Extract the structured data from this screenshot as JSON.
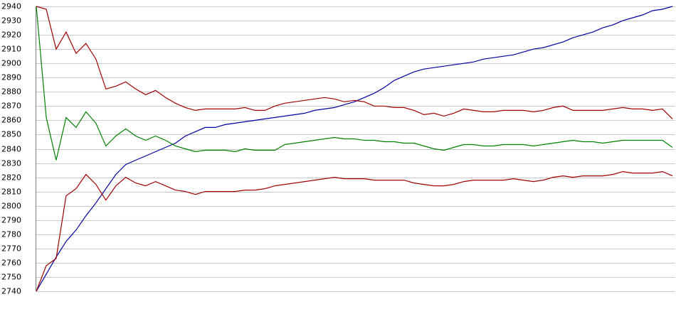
{
  "chart_data": {
    "type": "line",
    "categories": [
      null,
      null,
      null,
      null,
      null,
      null,
      null,
      null,
      null,
      null,
      null,
      null,
      null,
      null,
      null,
      null,
      null,
      null,
      null,
      null,
      null,
      null,
      null,
      null,
      null,
      null,
      null,
      null,
      null,
      null,
      null,
      null,
      null,
      null,
      null,
      null,
      null,
      null,
      null,
      null,
      null,
      null,
      null,
      null,
      null,
      null,
      null,
      null,
      null,
      null,
      null,
      null,
      null,
      null,
      null,
      null,
      null,
      null,
      null,
      null,
      null,
      null,
      null,
      null,
      null
    ],
    "ylim": [
      2740,
      2940
    ],
    "yticks": [
      2740,
      2750,
      2760,
      2770,
      2780,
      2790,
      2800,
      2810,
      2820,
      2830,
      2840,
      2850,
      2860,
      2870,
      2880,
      2890,
      2900,
      2910,
      2920,
      2930,
      2940
    ],
    "grid": true,
    "series": [
      {
        "color": "#0000a0",
        "values": [
          2740,
          2752,
          2764,
          2775,
          2783,
          2793,
          2802,
          2812,
          2822,
          2829,
          2832,
          2835,
          2838,
          2841,
          2844,
          2849,
          2852,
          2855,
          2855,
          2857,
          2858,
          2859,
          2860,
          2861,
          2862,
          2863,
          2864,
          2865,
          2867,
          2868,
          2869,
          2871,
          2873,
          2876,
          2879,
          2883,
          2888,
          2891,
          2894,
          2896,
          2897,
          2898,
          2899,
          2900,
          2901,
          2903,
          2904,
          2905,
          2906,
          2908,
          2910,
          2911,
          2913,
          2915,
          2918,
          2920,
          2922,
          2925,
          2927,
          2930,
          2932,
          2934,
          2937,
          2938,
          2940
        ]
      },
      {
        "color": "#008000",
        "values": [
          2940,
          2862,
          2832,
          2862,
          2855,
          2866,
          2858,
          2842,
          2849,
          2854,
          2849,
          2846,
          2849,
          2846,
          2842,
          2840,
          2838,
          2839,
          2839,
          2839,
          2838,
          2840,
          2839,
          2839,
          2839,
          2843,
          2844,
          2845,
          2846,
          2847,
          2848,
          2847,
          2847,
          2846,
          2846,
          2845,
          2845,
          2844,
          2844,
          2842,
          2840,
          2839,
          2841,
          2843,
          2843,
          2842,
          2842,
          2843,
          2843,
          2843,
          2842,
          2843,
          2844,
          2845,
          2846,
          2845,
          2845,
          2844,
          2845,
          2846,
          2846,
          2846,
          2846,
          2846,
          2841
        ]
      },
      {
        "color": "#a00000",
        "values": [
          2940,
          2938,
          2910,
          2922,
          2907,
          2914,
          2903,
          2882,
          2884,
          2887,
          2882,
          2878,
          2881,
          2876,
          2872,
          2869,
          2867,
          2868,
          2868,
          2868,
          2868,
          2869,
          2867,
          2867,
          2870,
          2872,
          2873,
          2874,
          2875,
          2876,
          2875,
          2873,
          2874,
          2873,
          2870,
          2870,
          2869,
          2869,
          2867,
          2864,
          2865,
          2863,
          2865,
          2868,
          2867,
          2866,
          2866,
          2867,
          2867,
          2867,
          2866,
          2867,
          2869,
          2870,
          2867,
          2867,
          2867,
          2867,
          2868,
          2869,
          2868,
          2868,
          2867,
          2868,
          2861
        ]
      },
      {
        "color": "#a00000",
        "values": [
          2740,
          2758,
          2763,
          2807,
          2812,
          2822,
          2815,
          2804,
          2814,
          2820,
          2816,
          2814,
          2817,
          2814,
          2811,
          2810,
          2808,
          2810,
          2810,
          2810,
          2810,
          2811,
          2811,
          2812,
          2814,
          2815,
          2816,
          2817,
          2818,
          2819,
          2820,
          2819,
          2819,
          2819,
          2818,
          2818,
          2818,
          2818,
          2816,
          2815,
          2814,
          2814,
          2815,
          2817,
          2818,
          2818,
          2818,
          2818,
          2819,
          2818,
          2817,
          2818,
          2820,
          2821,
          2820,
          2821,
          2821,
          2821,
          2822,
          2824,
          2823,
          2823,
          2823,
          2824,
          2821
        ]
      }
    ]
  }
}
